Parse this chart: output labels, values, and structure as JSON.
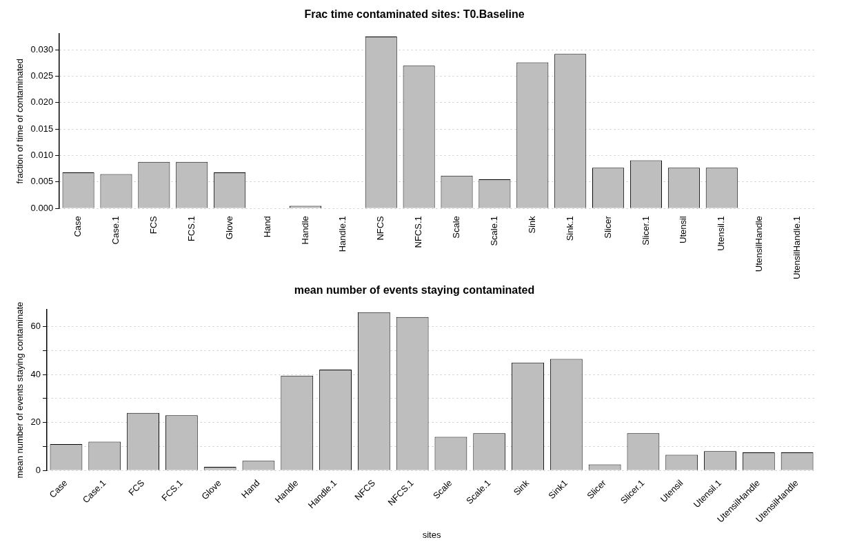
{
  "chart_data": [
    {
      "type": "bar",
      "title": "Frac time contaminated sites: T0.Baseline",
      "ylabel": "fraction of time of contaminated",
      "categories": [
        "Case",
        "Case.1",
        "FCS",
        "FCS.1",
        "Glove",
        "Hand",
        "Handle",
        "Handle.1",
        "NFCS",
        "NFCS.1",
        "Scale",
        "Scale.1",
        "Sink",
        "Sink.1",
        "Slicer",
        "Slicer.1",
        "Utensil",
        "Utensil.1",
        "UtensilHandle",
        "UtensilHandle.1"
      ],
      "values": [
        0.0068,
        0.0065,
        0.0088,
        0.0088,
        0.0068,
        0,
        0.0005,
        0,
        0.0325,
        0.027,
        0.0062,
        0.0055,
        0.0276,
        0.0292,
        0.0077,
        0.0091,
        0.0077,
        0.0077,
        0,
        0
      ],
      "color": "#bebebe",
      "ylim": [
        0,
        0.033
      ],
      "yticks": [
        {
          "value": 0,
          "label": "0.000"
        },
        {
          "value": 0.005,
          "label": "0.005"
        },
        {
          "value": 0.01,
          "label": "0.010"
        },
        {
          "value": 0.015,
          "label": "0.015"
        },
        {
          "value": 0.02,
          "label": "0.020"
        },
        {
          "value": 0.025,
          "label": "0.025"
        },
        {
          "value": 0.03,
          "label": "0.030"
        }
      ],
      "grid": "y",
      "legend": false
    },
    {
      "type": "bar",
      "title": "mean number of events staying contaminated",
      "xlabel": "sites",
      "ylabel": "mean number of events staying contaminate",
      "categories": [
        "Case",
        "Case.1",
        "FCS",
        "FCS.1",
        "Glove",
        "Hand",
        "Handle",
        "Handle.1",
        "NFCS",
        "NFCS.1",
        "Scale",
        "Scale.1",
        "Sink",
        "Sink1",
        "Slicer",
        "Slicer.1",
        "Utensil",
        "Utensil.1",
        "UtensilHandle",
        "UtensilHandle"
      ],
      "values": [
        11,
        12,
        24,
        23,
        1.5,
        4,
        39.5,
        42,
        66,
        64,
        14,
        15.5,
        45,
        46.5,
        2.5,
        15.5,
        6.5,
        8,
        7.5,
        7.5
      ],
      "color": "#bebebe",
      "ylim": [
        0,
        67
      ],
      "yticks": [
        0,
        {
          "value": 10,
          "label": null
        },
        20,
        {
          "value": 30,
          "label": null
        },
        40,
        {
          "value": 50,
          "label": null
        },
        60
      ],
      "grid": "y",
      "legend": false
    }
  ]
}
